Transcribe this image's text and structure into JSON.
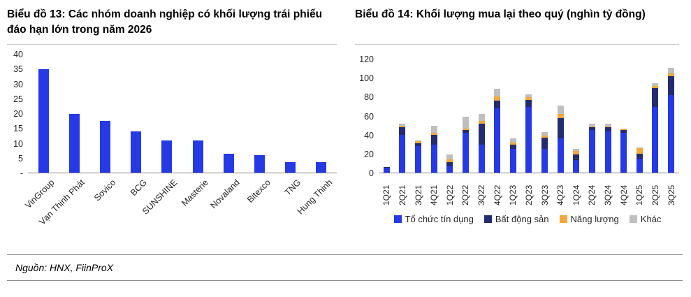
{
  "source": "Nguồn: HNX, FiinProX",
  "chart_data": [
    {
      "id": "chart13",
      "type": "bar",
      "title": "Biểu đồ 13: Các nhóm doanh nghiệp có khối lượng trái phiếu đáo hạn lớn trong năm 2026",
      "categories": [
        "VinGroup",
        "Vạn Thịnh Phát",
        "Sovico",
        "BCG",
        "SUNSHINE",
        "Masterie",
        "Novaland",
        "Bitexco",
        "TNG",
        "Hung Thinh"
      ],
      "values": [
        35,
        20,
        17.5,
        14,
        11,
        11,
        6.5,
        6,
        3.5,
        3.5
      ],
      "xlabel": "",
      "ylabel": "",
      "ylim": [
        0,
        40
      ],
      "yticks": [
        "-",
        "5",
        "10",
        "15",
        "20",
        "25",
        "30",
        "35",
        "40"
      ],
      "bar_color": "#2539E5",
      "grid": false,
      "legend_position": "none"
    },
    {
      "id": "chart14",
      "type": "bar",
      "stacked": true,
      "title": "Biểu đồ 14: Khối lượng mua lại theo quý (nghìn tỷ đồng)",
      "categories": [
        "1Q21",
        "2Q21",
        "3Q21",
        "4Q21",
        "1Q22",
        "2Q22",
        "3Q22",
        "4Q22",
        "1Q23",
        "2Q23",
        "3Q23",
        "4Q23",
        "1Q24",
        "2Q24",
        "3Q24",
        "4Q24",
        "1Q25",
        "2Q25",
        "3Q25"
      ],
      "series": [
        {
          "name": "Tổ chức tín dụng",
          "color": "#2539E5",
          "values": [
            5,
            40,
            28,
            30,
            7,
            42,
            30,
            68,
            25,
            70,
            25,
            36,
            13,
            45,
            44,
            42,
            15,
            70,
            82
          ]
        },
        {
          "name": "Bất động sản",
          "color": "#232C6E",
          "values": [
            1,
            8,
            3,
            10,
            4,
            3,
            22,
            8,
            5,
            7,
            12,
            22,
            6,
            3,
            4,
            3,
            5,
            20,
            20
          ]
        },
        {
          "name": "Năng lượng",
          "color": "#F2A93B",
          "values": [
            0,
            2,
            2,
            2,
            3,
            2,
            3,
            5,
            2,
            3,
            2,
            4,
            4,
            1,
            1,
            1,
            6,
            2,
            3
          ]
        },
        {
          "name": "Khác",
          "color": "#BFBFBF",
          "values": [
            0,
            2,
            1,
            8,
            5,
            12,
            7,
            8,
            4,
            3,
            4,
            9,
            2,
            3,
            3,
            1,
            1,
            3,
            6
          ]
        }
      ],
      "xlabel": "",
      "ylabel": "",
      "ylim": [
        0,
        120
      ],
      "yticks": [
        "0",
        "20",
        "40",
        "60",
        "80",
        "100",
        "120"
      ],
      "grid": false,
      "legend_position": "bottom"
    }
  ]
}
